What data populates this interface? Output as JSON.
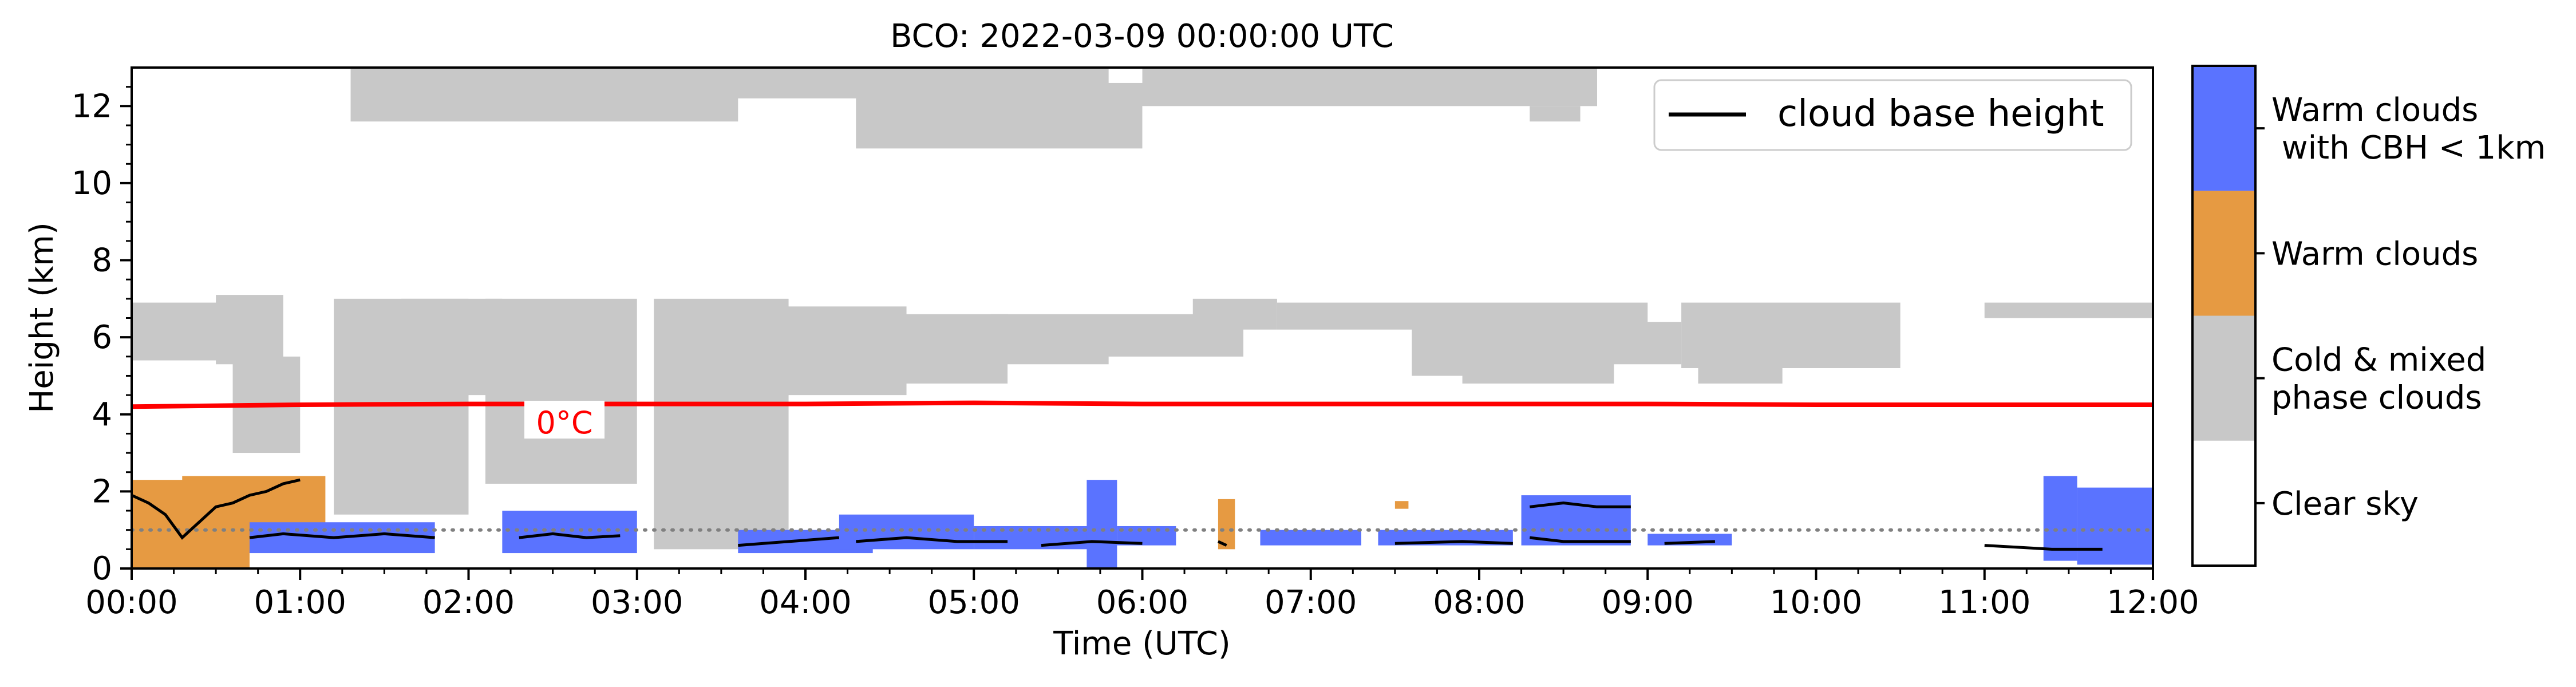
{
  "chart_data": {
    "type": "heatmap",
    "title": "BCO: 2022-03-09 00:00:00 UTC",
    "xlabel": "Time (UTC)",
    "ylabel": "Height (km)",
    "xlim": [
      "00:00",
      "12:00"
    ],
    "ylim": [
      0,
      13
    ],
    "x_ticks": [
      "00:00",
      "01:00",
      "02:00",
      "03:00",
      "04:00",
      "05:00",
      "06:00",
      "07:00",
      "08:00",
      "09:00",
      "10:00",
      "11:00",
      "12:00"
    ],
    "y_ticks": [
      0,
      2,
      4,
      6,
      8,
      10,
      12
    ],
    "legend": {
      "entries": [
        "cloud base height"
      ],
      "placement": "upper right"
    },
    "colors": {
      "clear_sky": "#ffffff",
      "cold_mixed": "#c8c8c8",
      "warm": "#e69a42",
      "warm_low": "#5a73ff",
      "freezing_line": "#ff0000",
      "cloud_base": "#000000",
      "reference_line": "#808080"
    },
    "colorbar": {
      "classes": [
        {
          "label": "Clear sky",
          "color": "#ffffff"
        },
        {
          "label_lines": [
            "Cold & mixed",
            "phase clouds"
          ],
          "color": "#c8c8c8"
        },
        {
          "label": "Warm clouds",
          "color": "#e69a42"
        },
        {
          "label_lines": [
            "Warm clouds",
            " with CBH < 1km"
          ],
          "color": "#5a73ff"
        }
      ]
    },
    "freezing_level": {
      "label": "0°C",
      "points": [
        [
          0,
          4.2
        ],
        [
          1,
          4.25
        ],
        [
          2,
          4.27
        ],
        [
          3,
          4.27
        ],
        [
          4,
          4.27
        ],
        [
          5,
          4.3
        ],
        [
          6,
          4.27
        ],
        [
          7,
          4.27
        ],
        [
          8,
          4.27
        ],
        [
          9,
          4.27
        ],
        [
          10,
          4.25
        ],
        [
          11,
          4.25
        ],
        [
          12,
          4.25
        ]
      ]
    },
    "reference_height_km": 1.0,
    "cloud_regions": [
      {
        "class": "cold_mixed",
        "t0": 1.3,
        "t1": 3.6,
        "zbot": 11.6,
        "ztop": 13.0
      },
      {
        "class": "cold_mixed",
        "t0": 3.2,
        "t1": 5.8,
        "zbot": 12.2,
        "ztop": 13.0
      },
      {
        "class": "cold_mixed",
        "t0": 4.3,
        "t1": 6.0,
        "zbot": 10.9,
        "ztop": 12.6
      },
      {
        "class": "cold_mixed",
        "t0": 6.0,
        "t1": 8.7,
        "zbot": 12.0,
        "ztop": 13.0
      },
      {
        "class": "cold_mixed",
        "t0": 8.3,
        "t1": 8.6,
        "zbot": 11.6,
        "ztop": 12.0
      },
      {
        "class": "cold_mixed",
        "t0": 0.0,
        "t1": 0.6,
        "zbot": 5.4,
        "ztop": 6.9
      },
      {
        "class": "cold_mixed",
        "t0": 0.5,
        "t1": 0.9,
        "zbot": 5.3,
        "ztop": 7.1
      },
      {
        "class": "cold_mixed",
        "t0": 0.6,
        "t1": 1.0,
        "zbot": 3.0,
        "ztop": 5.5
      },
      {
        "class": "cold_mixed",
        "t0": 1.2,
        "t1": 2.0,
        "zbot": 1.4,
        "ztop": 7.0
      },
      {
        "class": "cold_mixed",
        "t0": 1.6,
        "t1": 2.2,
        "zbot": 4.5,
        "ztop": 7.0
      },
      {
        "class": "cold_mixed",
        "t0": 2.1,
        "t1": 3.0,
        "zbot": 2.2,
        "ztop": 7.0
      },
      {
        "class": "cold_mixed",
        "t0": 3.1,
        "t1": 3.9,
        "zbot": 0.5,
        "ztop": 7.0
      },
      {
        "class": "cold_mixed",
        "t0": 3.8,
        "t1": 4.6,
        "zbot": 4.5,
        "ztop": 6.8
      },
      {
        "class": "cold_mixed",
        "t0": 4.5,
        "t1": 5.2,
        "zbot": 4.8,
        "ztop": 6.6
      },
      {
        "class": "cold_mixed",
        "t0": 4.5,
        "t1": 5.8,
        "zbot": 5.3,
        "ztop": 6.1
      },
      {
        "class": "cold_mixed",
        "t0": 5.1,
        "t1": 6.6,
        "zbot": 5.5,
        "ztop": 6.6
      },
      {
        "class": "cold_mixed",
        "t0": 6.3,
        "t1": 6.8,
        "zbot": 6.2,
        "ztop": 7.0
      },
      {
        "class": "cold_mixed",
        "t0": 6.8,
        "t1": 9.0,
        "zbot": 6.2,
        "ztop": 6.9
      },
      {
        "class": "cold_mixed",
        "t0": 7.6,
        "t1": 8.0,
        "zbot": 5.0,
        "ztop": 6.6
      },
      {
        "class": "cold_mixed",
        "t0": 7.9,
        "t1": 8.8,
        "zbot": 4.8,
        "ztop": 6.6
      },
      {
        "class": "cold_mixed",
        "t0": 8.6,
        "t1": 9.2,
        "zbot": 5.3,
        "ztop": 6.4
      },
      {
        "class": "cold_mixed",
        "t0": 9.2,
        "t1": 10.5,
        "zbot": 5.2,
        "ztop": 6.9
      },
      {
        "class": "cold_mixed",
        "t0": 9.3,
        "t1": 9.8,
        "zbot": 4.8,
        "ztop": 5.6
      },
      {
        "class": "cold_mixed",
        "t0": 11.0,
        "t1": 12.0,
        "zbot": 6.5,
        "ztop": 6.9
      },
      {
        "class": "warm",
        "t0": 0.0,
        "t1": 0.7,
        "zbot": 0.0,
        "ztop": 2.3
      },
      {
        "class": "warm",
        "t0": 0.3,
        "t1": 1.15,
        "zbot": 0.5,
        "ztop": 2.4
      },
      {
        "class": "warm",
        "t0": 6.45,
        "t1": 6.55,
        "zbot": 0.5,
        "ztop": 1.8
      },
      {
        "class": "warm",
        "t0": 7.5,
        "t1": 7.58,
        "zbot": 1.55,
        "ztop": 1.75
      },
      {
        "class": "warm_low",
        "t0": 0.7,
        "t1": 1.8,
        "zbot": 0.4,
        "ztop": 1.2
      },
      {
        "class": "warm_low",
        "t0": 2.2,
        "t1": 3.0,
        "zbot": 0.4,
        "ztop": 1.5
      },
      {
        "class": "warm_low",
        "t0": 3.6,
        "t1": 4.4,
        "zbot": 0.4,
        "ztop": 1.0
      },
      {
        "class": "warm_low",
        "t0": 4.2,
        "t1": 5.0,
        "zbot": 0.5,
        "ztop": 1.4
      },
      {
        "class": "warm_low",
        "t0": 5.0,
        "t1": 5.7,
        "zbot": 0.5,
        "ztop": 1.1
      },
      {
        "class": "warm_low",
        "t0": 5.67,
        "t1": 5.85,
        "zbot": 0.0,
        "ztop": 2.3
      },
      {
        "class": "warm_low",
        "t0": 5.85,
        "t1": 6.2,
        "zbot": 0.6,
        "ztop": 1.1
      },
      {
        "class": "warm_low",
        "t0": 6.7,
        "t1": 7.3,
        "zbot": 0.6,
        "ztop": 1.0
      },
      {
        "class": "warm_low",
        "t0": 7.4,
        "t1": 8.2,
        "zbot": 0.6,
        "ztop": 1.0
      },
      {
        "class": "warm_low",
        "t0": 8.25,
        "t1": 8.9,
        "zbot": 0.6,
        "ztop": 1.9
      },
      {
        "class": "warm_low",
        "t0": 9.0,
        "t1": 9.5,
        "zbot": 0.6,
        "ztop": 0.9
      },
      {
        "class": "warm_low",
        "t0": 11.35,
        "t1": 11.55,
        "zbot": 0.2,
        "ztop": 2.4
      },
      {
        "class": "warm_low",
        "t0": 11.55,
        "t1": 12.0,
        "zbot": 0.1,
        "ztop": 2.1
      }
    ],
    "cloud_base_segments": [
      [
        [
          0.0,
          1.9
        ],
        [
          0.1,
          1.7
        ],
        [
          0.2,
          1.4
        ],
        [
          0.3,
          0.8
        ],
        [
          0.4,
          1.2
        ],
        [
          0.5,
          1.6
        ],
        [
          0.6,
          1.7
        ],
        [
          0.7,
          1.9
        ],
        [
          0.8,
          2.0
        ],
        [
          0.9,
          2.2
        ],
        [
          1.0,
          2.3
        ]
      ],
      [
        [
          0.7,
          0.8
        ],
        [
          0.9,
          0.9
        ],
        [
          1.2,
          0.8
        ],
        [
          1.5,
          0.9
        ],
        [
          1.8,
          0.8
        ]
      ],
      [
        [
          2.3,
          0.8
        ],
        [
          2.5,
          0.9
        ],
        [
          2.7,
          0.8
        ],
        [
          2.9,
          0.85
        ]
      ],
      [
        [
          3.6,
          0.6
        ],
        [
          3.9,
          0.7
        ],
        [
          4.2,
          0.8
        ]
      ],
      [
        [
          4.3,
          0.7
        ],
        [
          4.6,
          0.8
        ],
        [
          4.9,
          0.7
        ],
        [
          5.2,
          0.7
        ]
      ],
      [
        [
          5.4,
          0.6
        ],
        [
          5.7,
          0.7
        ],
        [
          6.0,
          0.65
        ]
      ],
      [
        [
          6.45,
          0.7
        ],
        [
          6.5,
          0.6
        ]
      ],
      [
        [
          7.5,
          0.65
        ],
        [
          7.9,
          0.7
        ],
        [
          8.2,
          0.65
        ]
      ],
      [
        [
          8.3,
          1.6
        ],
        [
          8.5,
          1.7
        ],
        [
          8.7,
          1.6
        ],
        [
          8.9,
          1.6
        ]
      ],
      [
        [
          8.3,
          0.8
        ],
        [
          8.5,
          0.7
        ],
        [
          8.9,
          0.7
        ]
      ],
      [
        [
          9.1,
          0.65
        ],
        [
          9.4,
          0.7
        ]
      ],
      [
        [
          11.0,
          0.6
        ],
        [
          11.4,
          0.5
        ],
        [
          11.7,
          0.5
        ]
      ]
    ]
  }
}
